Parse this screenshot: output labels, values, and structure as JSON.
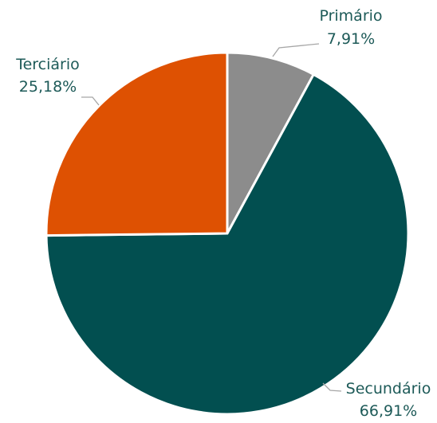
{
  "chart_data": {
    "type": "pie",
    "slices": [
      {
        "label": "Primário",
        "value": 7.91,
        "display": "7,91%",
        "color": "#8c8c8c"
      },
      {
        "label": "Secundário",
        "value": 66.91,
        "display": "66,91%",
        "color": "#024f50"
      },
      {
        "label": "Terciário",
        "value": 25.18,
        "display": "25,18%",
        "color": "#de5102"
      }
    ],
    "start_angle": "12 o'clock",
    "direction": "clockwise",
    "data_labels": "outside with leader lines",
    "legend": "none"
  }
}
